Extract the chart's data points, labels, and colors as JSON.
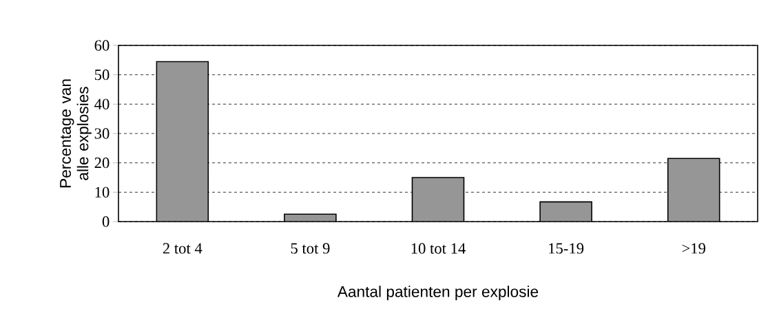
{
  "chart_data": {
    "type": "bar",
    "xlabel": "Aantal patienten per explosie",
    "ylabel": "Percentage van alle explosies",
    "categories": [
      "2 tot 4",
      "5 tot 9",
      "10 tot 14",
      "15-19",
      ">19"
    ],
    "values": [
      54.5,
      2.5,
      15,
      6.7,
      21.5
    ],
    "color": "#969696",
    "ylim": [
      0,
      60
    ],
    "yticks": [
      0,
      10,
      20,
      30,
      40,
      50,
      60
    ],
    "grid": "y"
  }
}
